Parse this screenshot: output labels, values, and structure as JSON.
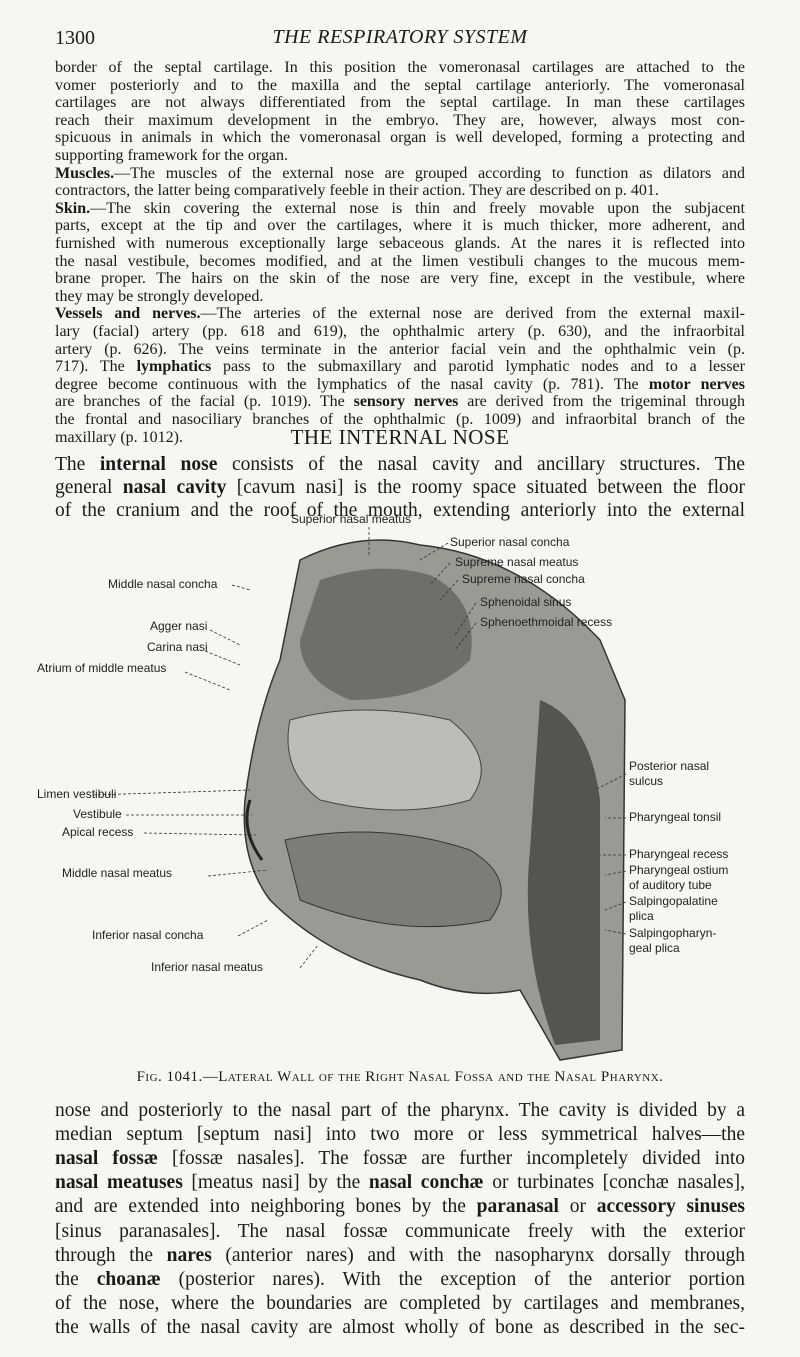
{
  "header": {
    "page_number": "1300",
    "running_title": "THE RESPIRATORY SYSTEM"
  },
  "top_paragraphs": [
    {
      "lines": [
        [
          "border of the septal cartilage. In this position the vomeronasal cartilages are attached to the"
        ],
        [
          "vomer posteriorly and to the maxilla and the septal cartilage anteriorly. The vomeronasal"
        ],
        [
          "cartilages are not always differentiated from the septal cartilage. In man these cartilages"
        ],
        [
          "reach their maximum development in the embryo. They are, however, always most con-"
        ],
        [
          "spicuous in animals in which the vomeronasal organ is well developed, forming a protecting and"
        ],
        [
          "supporting framework for the organ."
        ]
      ]
    },
    {
      "lines": [
        [
          {
            "bold": "Muscles."
          },
          "—The muscles of the external nose are grouped according to function as dilators and"
        ],
        [
          "contractors, the latter being comparatively feeble in their action. They are described on p. 401."
        ]
      ]
    },
    {
      "lines": [
        [
          {
            "bold": "Skin."
          },
          "—The skin covering the external nose is thin and freely movable upon the subjacent"
        ],
        [
          "parts, except at the tip and over the cartilages, where it is much thicker, more adherent, and"
        ],
        [
          "furnished with numerous exceptionally large sebaceous glands. At the nares it is reflected into"
        ],
        [
          "the nasal vestibule, becomes modified, and at the limen vestibuli changes to the mucous mem-"
        ],
        [
          "brane proper. The hairs on the skin of the nose are very fine, except in the vestibule, where"
        ],
        [
          "they may be strongly developed."
        ]
      ]
    },
    {
      "lines": [
        [
          {
            "bold": "Vessels and nerves."
          },
          "—The arteries of the external nose are derived from the external maxil-"
        ],
        [
          "lary (facial) artery (pp. 618 and 619), the ophthalmic artery (p. 630), and the infraorbital"
        ],
        [
          "artery (p. 626). The veins terminate in the anterior facial vein and the ophthalmic vein (p."
        ],
        [
          "717). The ",
          {
            "bold": "lymphatics"
          },
          " pass to the submaxillary and parotid lymphatic nodes and to a lesser"
        ],
        [
          "degree become continuous with the lymphatics of the nasal cavity (p. 781). The ",
          {
            "bold": "motor nerves"
          }
        ],
        [
          "are branches of the facial (p. 1019). The ",
          {
            "bold": "sensory nerves"
          },
          " are derived from the trigeminal through"
        ],
        [
          "the frontal and nasociliary branches of the ophthalmic (p. 1009) and infraorbital branch of the"
        ],
        [
          "maxillary (p. 1012)."
        ]
      ]
    }
  ],
  "section_heading": "THE INTERNAL NOSE",
  "intro_paragraph": {
    "lines": [
      [
        "The ",
        {
          "bold": "internal nose"
        },
        " consists of the nasal cavity and ancillary structures. The"
      ],
      [
        "general ",
        {
          "bold": "nasal cavity"
        },
        " [cavum nasi] is the roomy space situated between the floor"
      ],
      [
        "of the cranium and the roof of the mouth, extending anteriorly into the external"
      ]
    ]
  },
  "figure": {
    "labels": [
      [
        "Superior nasal meatus"
      ],
      [
        "Superior nasal concha"
      ],
      [
        "Supreme nasal meatus"
      ],
      [
        "Supreme nasal concha"
      ],
      [
        "Middle nasal concha"
      ],
      [
        "Sphenoidal sinus"
      ],
      [
        "Sphenoethmoidal recess"
      ],
      [
        "Agger nasi"
      ],
      [
        "Carina nasi"
      ],
      [
        "Atrium of middle meatus"
      ],
      [
        "Posterior nasal",
        "sulcus"
      ],
      [
        "Limen vestibuli"
      ],
      [
        "Vestibule"
      ],
      [
        "Apical recess"
      ],
      [
        "Pharyngeal tonsil"
      ],
      [
        "Pharyngeal recess"
      ],
      [
        "Middle nasal meatus"
      ],
      [
        "Pharyngeal ostium",
        "of auditory tube"
      ],
      [
        "Salpingopalatine",
        "plica"
      ],
      [
        "Salpingopharyn-",
        "geal plica"
      ],
      [
        "Inferior nasal concha"
      ],
      [
        "Inferior nasal meatus"
      ]
    ],
    "caption": "Fig. 1041.—Lateral Wall of the Right Nasal Fossa and the Nasal Pharynx."
  },
  "continuation_paragraph": {
    "lines": [
      [
        "nose and posteriorly to the nasal part of the pharynx. The cavity is divided by a"
      ],
      [
        "median septum [septum nasi] into two more or less symmetrical halves—the"
      ],
      [
        {
          "bold": "nasal fossæ"
        },
        " [fossæ nasales]. The fossæ are further incompletely divided into"
      ],
      [
        {
          "bold": "nasal meatuses"
        },
        " [meatus nasi] by the ",
        {
          "bold": "nasal conchæ"
        },
        " or turbinates [conchæ nasales],"
      ],
      [
        "and are extended into neighboring bones by the ",
        {
          "bold": "paranasal"
        },
        " or ",
        {
          "bold": "accessory sinuses"
        }
      ],
      [
        "[sinus paranasales]. The nasal fossæ communicate freely with the exterior"
      ],
      [
        "through the ",
        {
          "bold": "nares"
        },
        " (anterior nares) and with the nasopharynx dorsally through"
      ],
      [
        "the ",
        {
          "bold": "choanæ"
        },
        " (posterior nares). With the exception of the anterior portion"
      ],
      [
        "of the nose, where the boundaries are completed by cartilages and membranes,"
      ],
      [
        "the walls of the nasal cavity are almost wholly of bone as described in the sec-"
      ]
    ]
  }
}
